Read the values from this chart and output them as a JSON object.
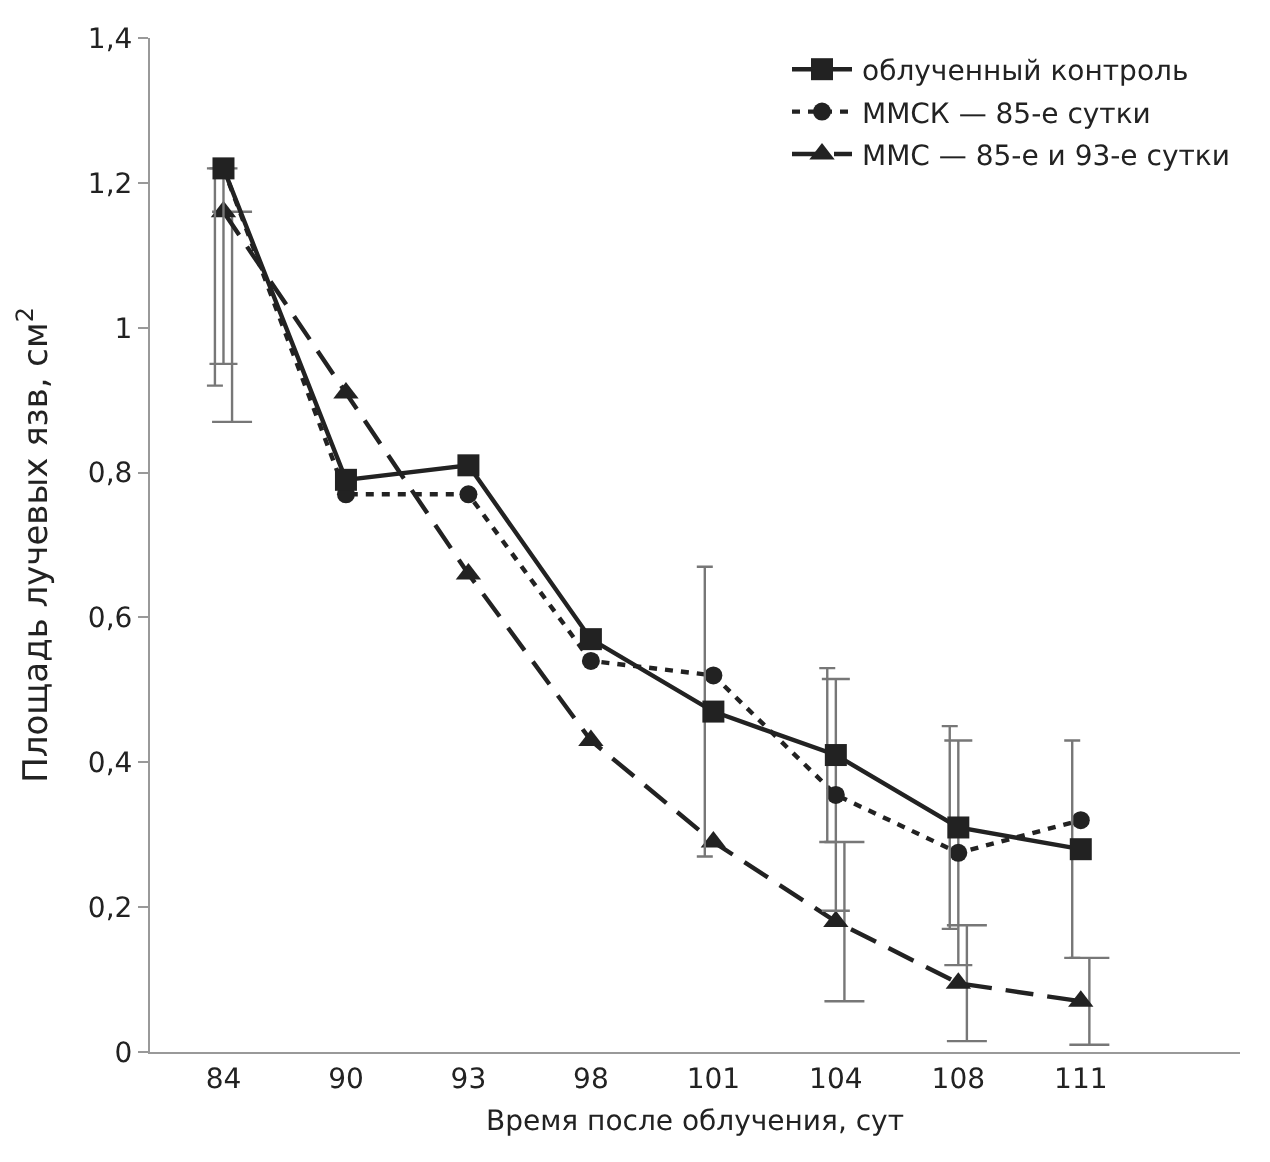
{
  "chart_data": {
    "type": "line",
    "xlabel": "Время после облучения, сут",
    "ylabel": "Площадь лучевых язв, см$^{2}$",
    "categories": [
      "84",
      "90",
      "93",
      "98",
      "101",
      "104",
      "108",
      "111"
    ],
    "ylim": [
      0,
      1.4
    ],
    "yticks": [
      0,
      {
        "value": 0.2,
        "label": "0,2"
      },
      {
        "value": 0.4,
        "label": "0,4"
      },
      {
        "value": 0.6,
        "label": "0,6"
      },
      {
        "value": 0.8,
        "label": "0,8"
      },
      1,
      {
        "value": 1.2,
        "label": "1,2"
      },
      {
        "value": 1.4,
        "label": "1,4"
      }
    ],
    "legend": "top right",
    "series": [
      {
        "name": "облученный контроль",
        "color": "#222222",
        "marker": "square",
        "line_style": "solid",
        "values": [
          1.22,
          0.79,
          0.81,
          0.57,
          0.47,
          0.41,
          0.31,
          0.28
        ],
        "errors": [
          [
            0.92,
            1.22
          ],
          null,
          null,
          null,
          0.2,
          0.12,
          0.14,
          0.15
        ]
      },
      {
        "name": "ММСК — 85-е сутки",
        "color": "#222222",
        "marker": "circle",
        "line_style": "dotted",
        "values": [
          1.22,
          0.77,
          0.77,
          0.54,
          0.52,
          0.355,
          0.275,
          0.32
        ],
        "errors": [
          [
            0.95,
            1.22
          ],
          null,
          null,
          null,
          null,
          0.16,
          0.155,
          null
        ]
      },
      {
        "name": "ММС — 85-е и 93-е сутки",
        "color": "#222222",
        "marker": "triangle",
        "line_style": "dashed",
        "values": [
          1.16,
          0.91,
          0.66,
          0.43,
          0.29,
          0.18,
          0.095,
          0.07
        ],
        "errors": [
          [
            0.87,
            1.16
          ],
          null,
          null,
          null,
          null,
          0.11,
          0.08,
          0.06
        ]
      }
    ]
  }
}
